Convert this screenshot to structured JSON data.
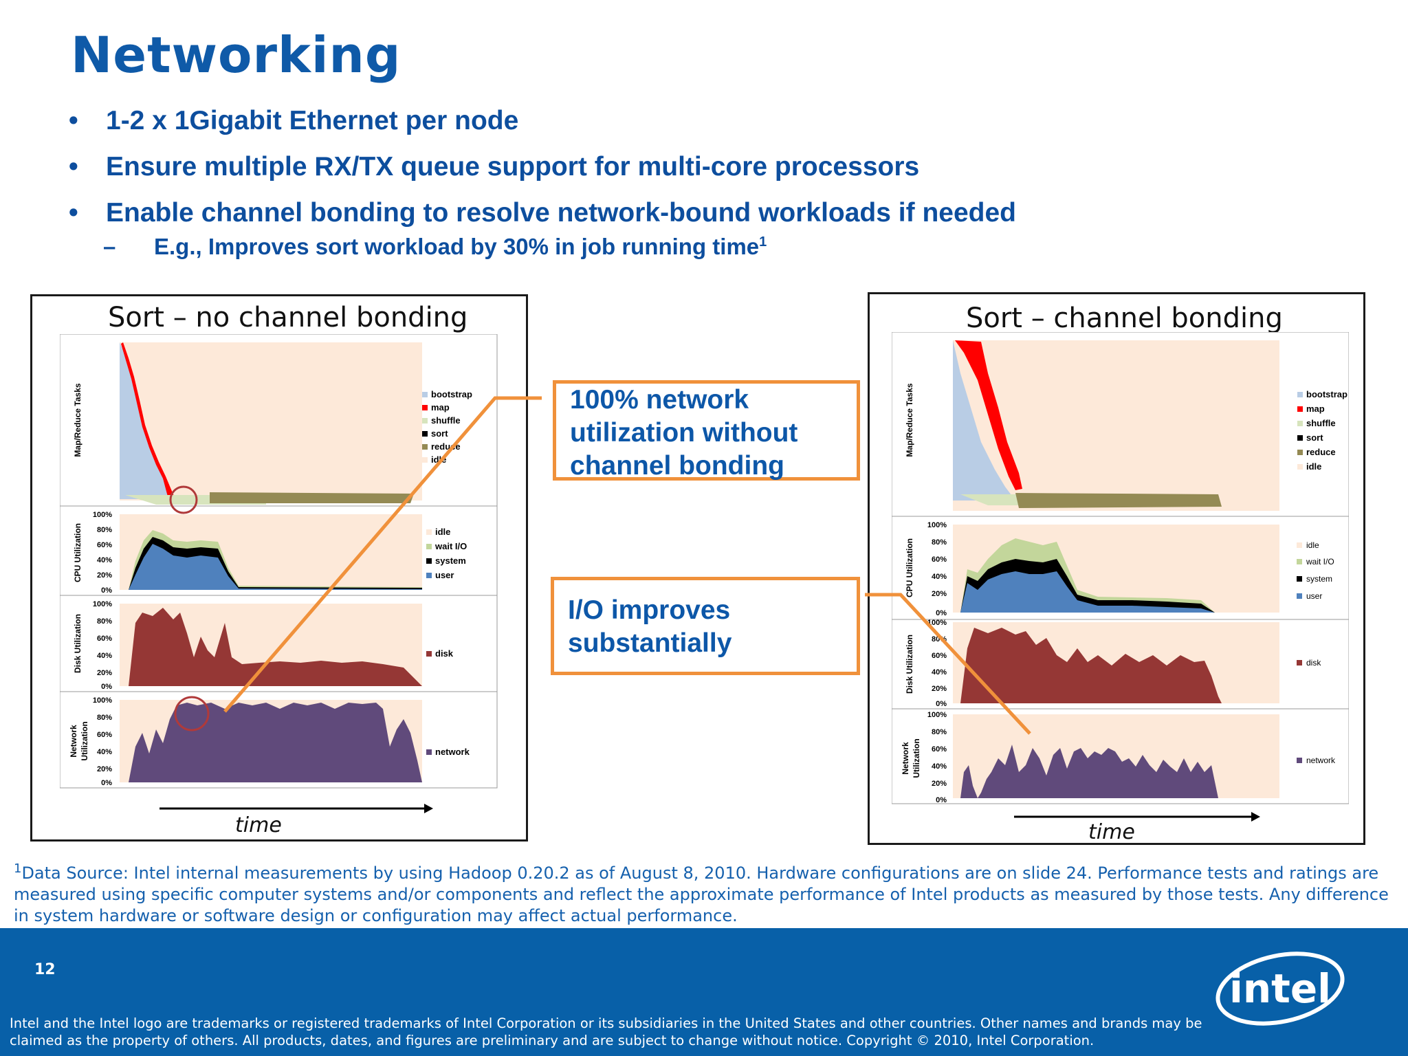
{
  "title": "Networking",
  "bullets": [
    "1-2 x 1Gigabit Ethernet per node",
    "Ensure multiple RX/TX queue support for multi-core processors",
    "Enable channel bonding to resolve network-bound workloads if needed"
  ],
  "sub_bullet": {
    "text": "E.g., Improves sort workload by 30% in job running time",
    "footnote_marker": "1"
  },
  "charts": {
    "left": {
      "title": "Sort – no channel bonding",
      "time_label": "time"
    },
    "right": {
      "title": "Sort – channel bonding",
      "time_label": "time"
    },
    "panel_labels": {
      "tasks": "Map/Reduce Tasks",
      "cpu": "CPU Utilization",
      "disk": "Disk Utilization",
      "net1": "Network",
      "net2": "Utilization"
    },
    "pct_ticks": [
      "100%",
      "80%",
      "60%",
      "40%",
      "20%",
      "0%"
    ],
    "legend_tasks": [
      "bootstrap",
      "map",
      "shuffle",
      "sort",
      "reduce",
      "idle"
    ],
    "legend_cpu": [
      "idle",
      "wait I/O",
      "system",
      "user"
    ],
    "legend_disk": [
      "disk"
    ],
    "legend_net": [
      "network"
    ],
    "colors": {
      "bootstrap": "#b9cde5",
      "map": "#ff0000",
      "shuffle": "#d7e4bd",
      "sort": "#000000",
      "reduce": "#948a54",
      "idle": "#fde9d9",
      "user": "#4f81bd",
      "system": "#000000",
      "waitio": "#c3d69b",
      "disk": "#953735",
      "network": "#604a7b"
    }
  },
  "callouts": {
    "network": [
      "100% network",
      "utilization without",
      "channel bonding"
    ],
    "io": [
      "I/O improves",
      "substantially"
    ]
  },
  "footnote": {
    "marker": "1",
    "text": "Data Source: Intel internal measurements by using Hadoop 0.20.2 as of August 8, 2010.  Hardware configurations are on slide 24. Performance tests and ratings are measured using specific computer systems and/or components and reflect the approximate performance of Intel products as measured by those tests.  Any difference in system hardware or software design or configuration may affect actual performance."
  },
  "footer": {
    "page_number": "12",
    "legal": "Intel and the Intel logo are trademarks or registered trademarks of Intel Corporation or its subsidiaries in the United States and other countries.  Other names and brands may be claimed as the property of others.  All products, dates, and figures are preliminary and are subject to change without notice.  Copyright © 2010, Intel Corporation.",
    "logo_text": "intel"
  }
}
